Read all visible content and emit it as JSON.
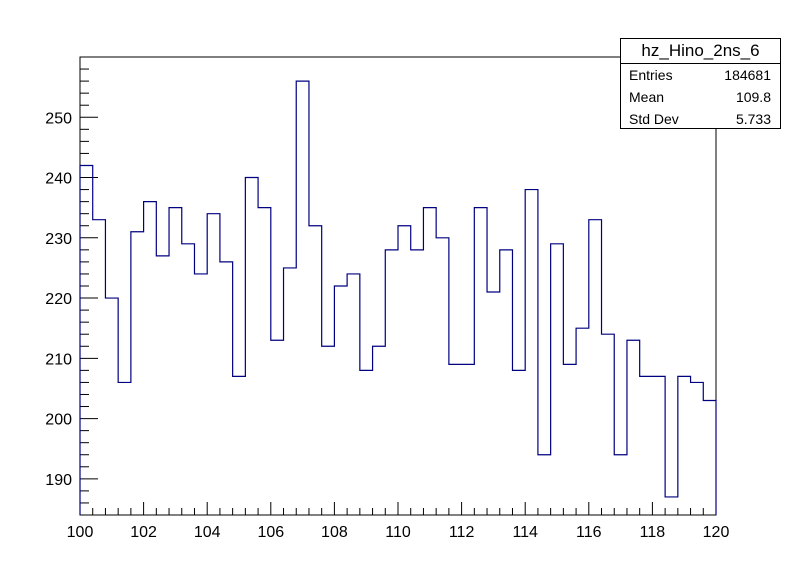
{
  "chart_data": {
    "type": "histogram",
    "title": "",
    "xlabel": "",
    "ylabel": "",
    "xlim": [
      100,
      120
    ],
    "ylim": [
      184,
      260
    ],
    "line_color": "#000080",
    "bin_edges": [
      100.0,
      100.4,
      100.8,
      101.2,
      101.6,
      102.0,
      102.4,
      102.8,
      103.2,
      103.6,
      104.0,
      104.4,
      104.8,
      105.2,
      105.6,
      106.0,
      106.4,
      106.8,
      107.2,
      107.6,
      108.0,
      108.4,
      108.8,
      109.2,
      109.6,
      110.0,
      110.4,
      110.8,
      111.2,
      111.6,
      112.0,
      112.4,
      112.8,
      113.2,
      113.6,
      114.0,
      114.4,
      114.8,
      115.2,
      115.6,
      116.0,
      116.4,
      116.8,
      117.2,
      117.6,
      118.0,
      118.4,
      118.8,
      119.2,
      119.6,
      120.0
    ],
    "values": [
      242,
      233,
      220,
      206,
      231,
      236,
      227,
      235,
      229,
      224,
      234,
      226,
      207,
      240,
      235,
      213,
      225,
      256,
      232,
      212,
      222,
      224,
      208,
      212,
      228,
      232,
      228,
      235,
      230,
      209,
      209,
      235,
      221,
      228,
      208,
      238,
      194,
      229,
      209,
      215,
      233,
      214,
      194,
      213,
      207,
      207,
      187,
      207,
      206,
      203
    ],
    "x_ticks": [
      "100",
      "102",
      "104",
      "106",
      "108",
      "110",
      "112",
      "114",
      "116",
      "118",
      "120"
    ],
    "y_ticks": [
      "190",
      "200",
      "210",
      "220",
      "230",
      "240",
      "250"
    ],
    "legend_placement": "top-right"
  },
  "stats": {
    "title": "hz_Hino_2ns_6",
    "rows": [
      {
        "label": "Entries",
        "value": "184681"
      },
      {
        "label": "Mean",
        "value": "109.8"
      },
      {
        "label": "Std Dev",
        "value": "5.733"
      }
    ]
  }
}
